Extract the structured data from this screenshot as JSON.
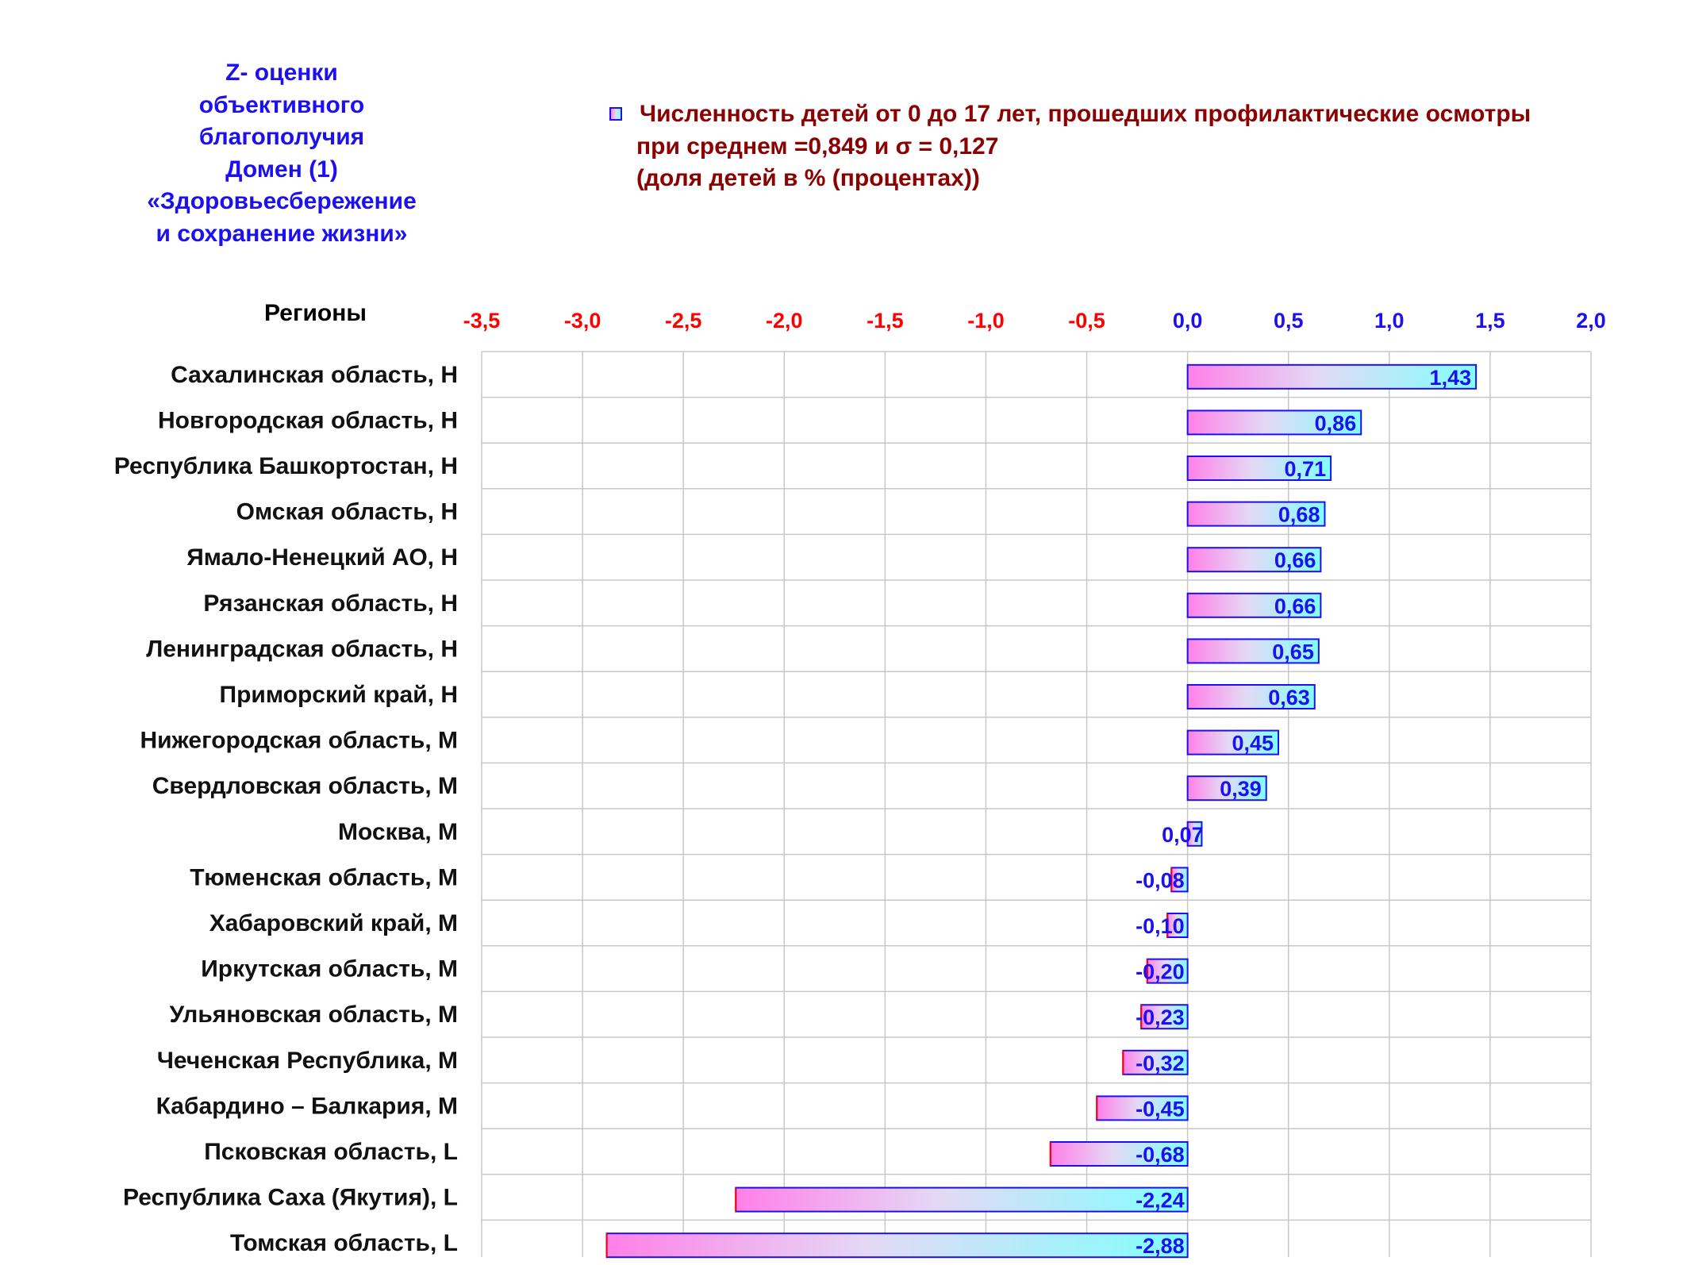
{
  "side_title": {
    "lines": [
      "Z- оценки",
      "объективного",
      "благополучия",
      "Домен (1)",
      "«Здоровьесбережение",
      "и сохранение жизни»"
    ]
  },
  "legend": {
    "line1": "Численность детей от 0 до 17 лет, прошедших профилактические осмотры",
    "line2": "при среднем =0,849  и σ = 0,127",
    "line3": "(доля детей в % (процентах))"
  },
  "colors": {
    "negative_tick": "#ff0000",
    "positive_tick": "#1d10f0",
    "bar_left": "#ff80e8",
    "bar_right": "#80ffff",
    "grid": "#c8c8c8"
  },
  "chart_data": {
    "type": "bar",
    "orientation": "horizontal",
    "ylabel": "Регионы",
    "categories": [
      "Сахалинская область,  Н",
      "Новгородская область,  Н",
      "Республика Башкортостан,  Н",
      "Омская область,  Н",
      "Ямало-Ненецкий АО,  Н",
      "Рязанская область,  Н",
      "Ленинградская область,  Н",
      "Приморский край,  Н",
      "Нижегородская область,  М",
      "Свердловская область,  М",
      "Москва,  М",
      "Тюменская область,  М",
      "Хабаровский край,  М",
      "Иркутская область,  М",
      "Ульяновская область,  М",
      "Чеченская Республика,  М",
      "Кабардино – Балкария,  М",
      "Псковская область,  L",
      "Республика Саха (Якутия),  L",
      "Томская область,  L"
    ],
    "values": [
      1.43,
      0.86,
      0.71,
      0.68,
      0.66,
      0.66,
      0.65,
      0.63,
      0.45,
      0.39,
      0.07,
      -0.08,
      -0.1,
      -0.2,
      -0.23,
      -0.32,
      -0.45,
      -0.68,
      -2.24,
      -2.88
    ],
    "value_labels": [
      "1,43",
      "0,86",
      "0,71",
      "0,68",
      "0,66",
      "0,66",
      "0,65",
      "0,63",
      "0,45",
      "0,39",
      "0,07",
      "-0,08",
      "-0,10",
      "-0,20",
      "-0,23",
      "-0,32",
      "-0,45",
      "-0,68",
      "-2,24",
      "-2,88"
    ],
    "xlim": [
      -3.5,
      2.0
    ],
    "x_ticks": [
      -3.5,
      -3.0,
      -2.5,
      -2.0,
      -1.5,
      -1.0,
      -0.5,
      0.0,
      0.5,
      1.0,
      1.5,
      2.0
    ],
    "x_tick_labels": [
      "-3,5",
      "-3,0",
      "-2,5",
      "-2,0",
      "-1,5",
      "-1,0",
      "-0,5",
      "0,0",
      "0,5",
      "1,0",
      "1,5",
      "2,0"
    ],
    "grid": true,
    "x_axis_position": "top"
  }
}
